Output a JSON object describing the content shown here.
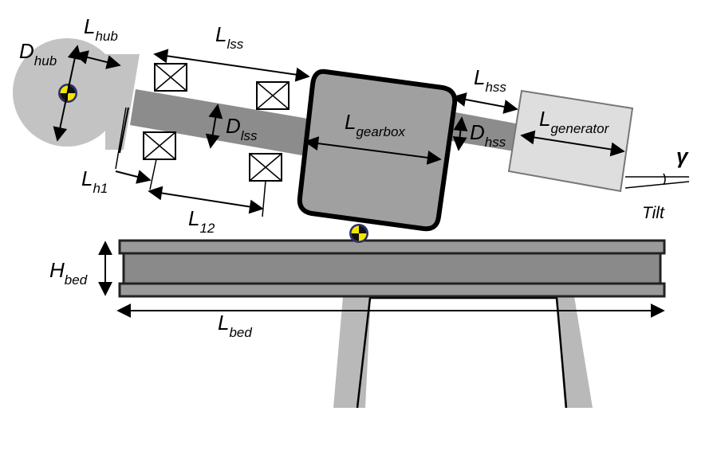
{
  "labels": {
    "d_hub": {
      "main": "D",
      "sub": "hub"
    },
    "l_hub": {
      "main": "L",
      "sub": "hub"
    },
    "l_lss": {
      "main": "L",
      "sub": "lss"
    },
    "d_lss": {
      "main": "D",
      "sub": "lss"
    },
    "l_gearbox": {
      "main": "L",
      "sub": "gearbox"
    },
    "l_hss": {
      "main": "L",
      "sub": "hss"
    },
    "d_hss": {
      "main": "D",
      "sub": "hss"
    },
    "l_generator": {
      "main": "L",
      "sub": "generator"
    },
    "l_h1": {
      "main": "L",
      "sub": "h1"
    },
    "l_12": {
      "main": "L",
      "sub": "12"
    },
    "h_bed": {
      "main": "H",
      "sub": "bed"
    },
    "l_bed": {
      "main": "L",
      "sub": "bed"
    },
    "gamma": "γ",
    "tilt": "Tilt"
  },
  "colors": {
    "hub": "#c3c3c3",
    "shaft": "#8c8c8c",
    "gearbox": "#a0a0a0",
    "generator": "#dedede",
    "bed": "#8f8f8f",
    "support": "#b9b9b9",
    "cg_marker_fill": "#f2e600",
    "cg_marker_ring": "#2b2f6b"
  }
}
